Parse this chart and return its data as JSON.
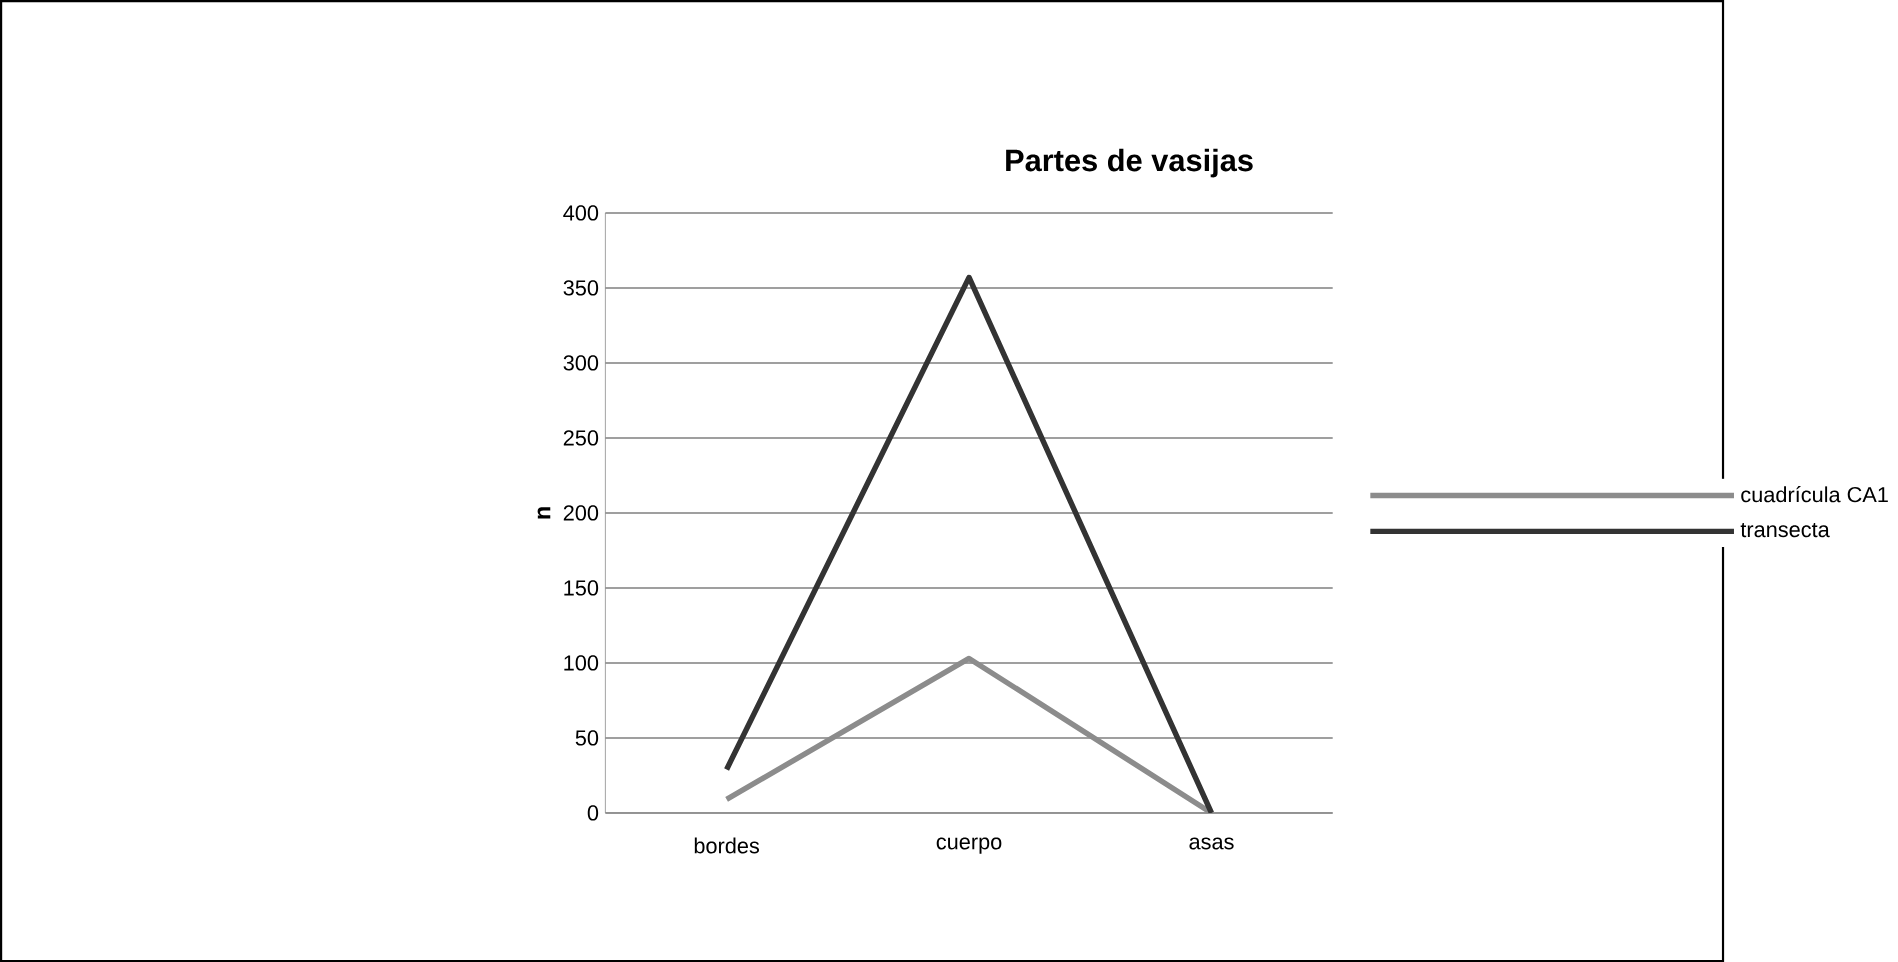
{
  "chart_data": {
    "type": "line",
    "title": "Partes de vasijas",
    "ylabel": "n",
    "categories": [
      "bordes",
      "cuerpo",
      "asas"
    ],
    "series": [
      {
        "name": "cuadrícula CA1",
        "color": "#8c8c8c",
        "values": [
          9,
          103,
          0
        ]
      },
      {
        "name": "transecta",
        "color": "#333333",
        "values": [
          29,
          357,
          0
        ]
      }
    ],
    "ylim": [
      0,
      400
    ],
    "yticks": [
      0,
      50,
      100,
      150,
      200,
      250,
      300,
      350,
      400
    ],
    "grid": "y",
    "legend": "right",
    "marker": "none"
  }
}
